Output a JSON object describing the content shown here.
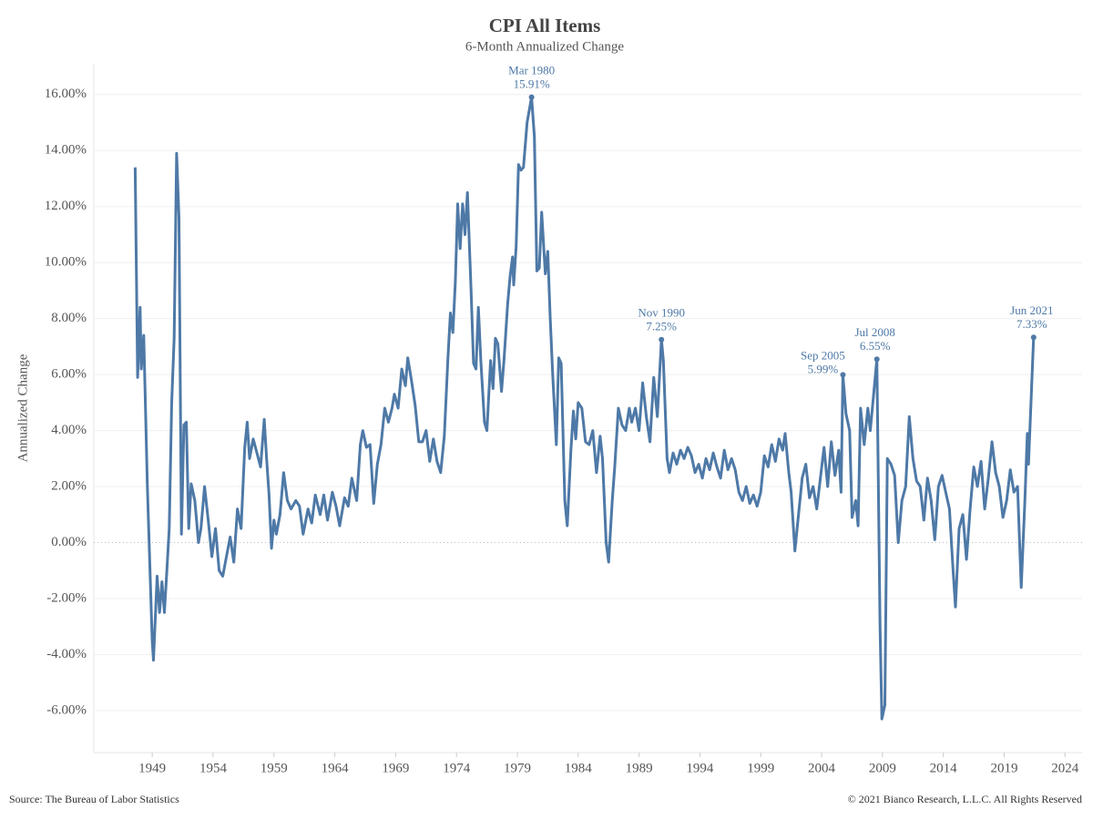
{
  "chart_data": {
    "type": "line",
    "title": "CPI All Items",
    "subtitle": "6-Month Annualized Change",
    "y_label": "Annualized Change",
    "source": "Source: The Bureau of Labor Statistics",
    "copyright": "© 2021 Bianco Research, L.L.C. All Rights Reserved",
    "color": "#4e79a7",
    "grid": true,
    "xlim": [
      1944.2,
      2025.4
    ],
    "xticks": [
      1949,
      1954,
      1959,
      1964,
      1969,
      1974,
      1979,
      1984,
      1989,
      1994,
      1999,
      2004,
      2009,
      2014,
      2019,
      2024
    ],
    "ylim": [
      -7.5,
      17.1
    ],
    "yticks": [
      {
        "value": -6,
        "label": "-6.00%"
      },
      {
        "value": -4,
        "label": "-4.00%"
      },
      {
        "value": -2,
        "label": "-2.00%"
      },
      {
        "value": 0,
        "label": "0.00%"
      },
      {
        "value": 2,
        "label": "2.00%"
      },
      {
        "value": 4,
        "label": "4.00%"
      },
      {
        "value": 6,
        "label": "6.00%"
      },
      {
        "value": 8,
        "label": "8.00%"
      },
      {
        "value": 10,
        "label": "10.00%"
      },
      {
        "value": 12,
        "label": "12.00%"
      },
      {
        "value": 14,
        "label": "14.00%"
      },
      {
        "value": 16,
        "label": "16.00%"
      }
    ],
    "x": [
      1947.6,
      1947.8,
      1948.0,
      1948.1,
      1948.3,
      1948.6,
      1949.0,
      1949.1,
      1949.4,
      1949.6,
      1949.8,
      1950.0,
      1950.2,
      1950.4,
      1950.6,
      1950.8,
      1951.0,
      1951.2,
      1951.4,
      1951.6,
      1951.8,
      1952.0,
      1952.2,
      1952.5,
      1952.8,
      1953.0,
      1953.3,
      1953.6,
      1953.9,
      1954.2,
      1954.5,
      1954.8,
      1955.1,
      1955.4,
      1955.7,
      1956.0,
      1956.3,
      1956.6,
      1956.8,
      1957.0,
      1957.3,
      1957.6,
      1957.9,
      1958.2,
      1958.4,
      1958.6,
      1958.8,
      1959.0,
      1959.2,
      1959.5,
      1959.8,
      1960.1,
      1960.4,
      1960.8,
      1961.1,
      1961.4,
      1961.8,
      1962.1,
      1962.4,
      1962.8,
      1963.1,
      1963.4,
      1963.8,
      1964.1,
      1964.4,
      1964.8,
      1965.1,
      1965.4,
      1965.8,
      1966.1,
      1966.3,
      1966.6,
      1966.9,
      1967.2,
      1967.5,
      1967.8,
      1968.1,
      1968.4,
      1968.7,
      1968.9,
      1969.2,
      1969.5,
      1969.8,
      1970.0,
      1970.3,
      1970.6,
      1970.9,
      1971.2,
      1971.5,
      1971.8,
      1972.1,
      1972.4,
      1972.7,
      1973.0,
      1973.3,
      1973.5,
      1973.7,
      1973.9,
      1974.1,
      1974.3,
      1974.5,
      1974.7,
      1974.9,
      1975.2,
      1975.4,
      1975.6,
      1975.8,
      1976.0,
      1976.3,
      1976.5,
      1976.8,
      1977.0,
      1977.2,
      1977.4,
      1977.7,
      1977.9,
      1978.2,
      1978.4,
      1978.6,
      1978.7,
      1978.9,
      1979.1,
      1979.3,
      1979.5,
      1979.8,
      1980.17,
      1980.4,
      1980.6,
      1980.8,
      1981.0,
      1981.3,
      1981.5,
      1981.7,
      1981.9,
      1982.2,
      1982.4,
      1982.6,
      1982.9,
      1983.1,
      1983.4,
      1983.6,
      1983.8,
      1984.0,
      1984.3,
      1984.6,
      1984.9,
      1985.2,
      1985.5,
      1985.8,
      1986.0,
      1986.3,
      1986.5,
      1986.8,
      1987.0,
      1987.3,
      1987.6,
      1987.9,
      1988.2,
      1988.4,
      1988.7,
      1989.0,
      1989.3,
      1989.6,
      1989.9,
      1990.2,
      1990.5,
      1990.84,
      1991.0,
      1991.3,
      1991.5,
      1991.8,
      1992.1,
      1992.4,
      1992.7,
      1993.0,
      1993.3,
      1993.6,
      1993.9,
      1994.2,
      1994.5,
      1994.8,
      1995.1,
      1995.4,
      1995.7,
      1996.0,
      1996.3,
      1996.6,
      1996.9,
      1997.2,
      1997.5,
      1997.8,
      1998.1,
      1998.4,
      1998.7,
      1999.0,
      1999.3,
      1999.6,
      1999.9,
      2000.2,
      2000.5,
      2000.8,
      2001.0,
      2001.3,
      2001.5,
      2001.8,
      2002.1,
      2002.4,
      2002.7,
      2003.0,
      2003.3,
      2003.6,
      2003.9,
      2004.2,
      2004.5,
      2004.8,
      2005.1,
      2005.4,
      2005.6,
      2005.75,
      2006.0,
      2006.3,
      2006.5,
      2006.8,
      2007.0,
      2007.2,
      2007.5,
      2007.8,
      2008.0,
      2008.54,
      2008.8,
      2008.95,
      2009.2,
      2009.4,
      2009.7,
      2010.0,
      2010.3,
      2010.6,
      2010.9,
      2011.2,
      2011.5,
      2011.8,
      2012.1,
      2012.4,
      2012.7,
      2013.0,
      2013.3,
      2013.6,
      2013.9,
      2014.2,
      2014.5,
      2014.8,
      2015.0,
      2015.3,
      2015.6,
      2015.9,
      2016.2,
      2016.5,
      2016.8,
      2017.1,
      2017.4,
      2017.7,
      2018.0,
      2018.3,
      2018.6,
      2018.9,
      2019.2,
      2019.5,
      2019.8,
      2020.1,
      2020.4,
      2020.7,
      2020.9,
      2021.0,
      2021.42
    ],
    "values": [
      13.4,
      5.9,
      8.4,
      6.2,
      7.4,
      2.0,
      -3.5,
      -4.2,
      -1.2,
      -2.5,
      -1.4,
      -2.5,
      -1.0,
      0.5,
      5.0,
      7.3,
      13.9,
      11.6,
      0.3,
      4.2,
      4.3,
      0.5,
      2.1,
      1.5,
      0.0,
      0.5,
      2.0,
      0.8,
      -0.5,
      0.5,
      -1.0,
      -1.2,
      -0.5,
      0.2,
      -0.7,
      1.2,
      0.5,
      3.4,
      4.3,
      3.0,
      3.7,
      3.2,
      2.7,
      4.4,
      3.0,
      1.7,
      -0.2,
      0.8,
      0.3,
      1.0,
      2.5,
      1.5,
      1.2,
      1.5,
      1.3,
      0.3,
      1.2,
      0.7,
      1.7,
      1.0,
      1.7,
      0.8,
      1.8,
      1.3,
      0.6,
      1.6,
      1.3,
      2.3,
      1.5,
      3.5,
      4.0,
      3.4,
      3.5,
      1.4,
      2.8,
      3.5,
      4.8,
      4.3,
      4.8,
      5.3,
      4.8,
      6.2,
      5.6,
      6.6,
      5.8,
      4.9,
      3.6,
      3.6,
      4.0,
      2.9,
      3.7,
      2.9,
      2.5,
      3.8,
      6.6,
      8.2,
      7.5,
      9.3,
      12.1,
      10.5,
      12.1,
      11.0,
      12.5,
      9.0,
      6.4,
      6.2,
      8.4,
      6.5,
      4.3,
      4.0,
      6.5,
      5.5,
      7.3,
      7.1,
      5.4,
      6.5,
      8.5,
      9.5,
      10.2,
      9.2,
      10.6,
      13.5,
      13.3,
      13.4,
      15.0,
      15.91,
      14.5,
      9.7,
      9.8,
      11.8,
      9.6,
      10.4,
      8.0,
      6.0,
      3.5,
      6.6,
      6.4,
      1.5,
      0.6,
      3.3,
      4.7,
      3.7,
      5.0,
      4.8,
      3.6,
      3.5,
      4.0,
      2.5,
      3.8,
      3.0,
      0.0,
      -0.7,
      1.5,
      2.7,
      4.8,
      4.2,
      4.0,
      4.8,
      4.3,
      4.8,
      4.0,
      5.7,
      4.5,
      3.6,
      5.9,
      4.5,
      7.25,
      6.5,
      3.0,
      2.5,
      3.2,
      2.8,
      3.3,
      3.0,
      3.4,
      3.1,
      2.5,
      2.8,
      2.3,
      3.0,
      2.6,
      3.2,
      2.7,
      2.3,
      3.3,
      2.6,
      3.0,
      2.6,
      1.8,
      1.5,
      2.0,
      1.4,
      1.7,
      1.3,
      1.8,
      3.1,
      2.7,
      3.5,
      2.9,
      3.7,
      3.3,
      3.9,
      2.5,
      1.8,
      -0.3,
      1.0,
      2.3,
      2.8,
      1.6,
      2.0,
      1.2,
      2.3,
      3.4,
      2.0,
      3.6,
      2.4,
      3.3,
      1.8,
      5.99,
      4.6,
      4.0,
      0.9,
      1.5,
      0.6,
      4.8,
      3.5,
      4.8,
      4.0,
      6.55,
      -3.0,
      -6.3,
      -5.8,
      3.0,
      2.8,
      2.4,
      0.0,
      1.5,
      2.0,
      4.5,
      3.0,
      2.2,
      2.0,
      0.8,
      2.3,
      1.5,
      0.1,
      2.0,
      2.4,
      1.8,
      1.2,
      -1.0,
      -2.3,
      0.5,
      1.0,
      -0.6,
      1.2,
      2.7,
      2.0,
      2.9,
      1.2,
      2.3,
      3.6,
      2.5,
      2.0,
      0.9,
      1.5,
      2.6,
      1.8,
      2.0,
      -1.6,
      1.5,
      3.9,
      2.8,
      7.33
    ],
    "annotations": [
      {
        "date": "Mar 1980",
        "x": 1980.17,
        "value": 15.91,
        "label": "15.91%"
      },
      {
        "date": "Nov 1990",
        "x": 1990.84,
        "value": 7.25,
        "label": "7.25%"
      },
      {
        "date": "Sep 2005",
        "x": 2005.75,
        "value": 5.99,
        "label": "5.99%"
      },
      {
        "date": "Jul 2008",
        "x": 2008.54,
        "value": 6.55,
        "label": "6.55%"
      },
      {
        "date": "Jun 2021",
        "x": 2021.42,
        "value": 7.33,
        "label": "7.33%"
      }
    ]
  }
}
